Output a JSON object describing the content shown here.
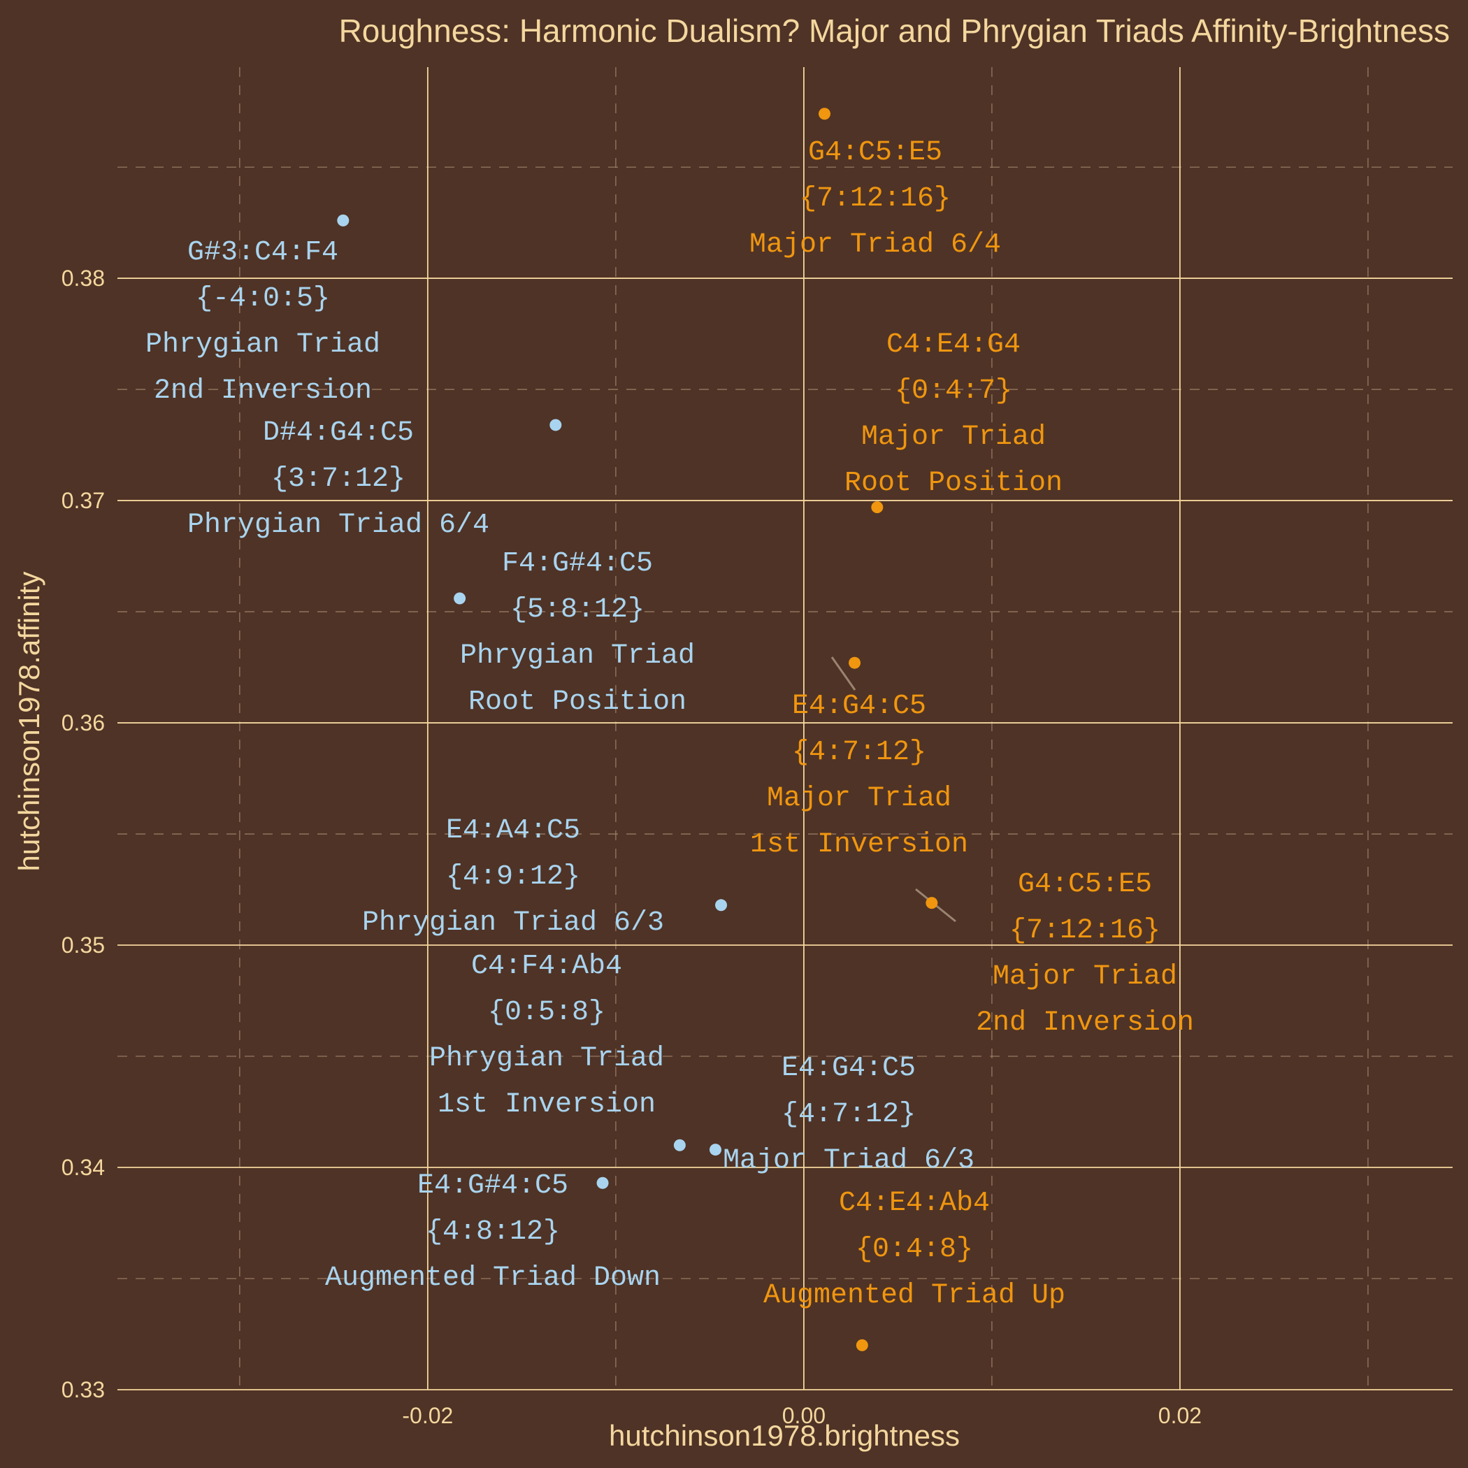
{
  "chart_data": {
    "type": "scatter",
    "title": "Roughness: Harmonic Dualism? Major and Phrygian Triads Affinity-Brightness",
    "xlabel": "hutchinson1978.brightness",
    "ylabel": "hutchinson1978.affinity",
    "xlim": [
      -0.0365,
      0.0345
    ],
    "ylim": [
      0.33,
      0.3895
    ],
    "x_ticks": [
      -0.02,
      0.0,
      0.02
    ],
    "x_tick_labels": [
      "-0.02",
      "0.00",
      "0.02"
    ],
    "y_ticks": [
      0.33,
      0.34,
      0.35,
      0.36,
      0.37,
      0.38
    ],
    "y_tick_labels": [
      "0.33",
      "0.34",
      "0.35",
      "0.36",
      "0.37",
      "0.38"
    ],
    "grid": true,
    "legend": "none",
    "colors": {
      "background": "#4f3326",
      "major": "#f0960f",
      "phrygian": "#a9d4ef",
      "text": "#f4d79e"
    },
    "points": [
      {
        "x": 0.0011,
        "y": 0.3874,
        "group": "major",
        "label_lines": [
          "G4:C5:E5",
          "{7:12:16}",
          "Major Triad 6/4"
        ]
      },
      {
        "x": 0.0039,
        "y": 0.3697,
        "group": "major",
        "label_lines": [
          "C4:E4:G4",
          "{0:4:7}",
          "Major Triad",
          "Root Position"
        ]
      },
      {
        "x": 0.0027,
        "y": 0.3627,
        "group": "major",
        "label_lines": [
          "E4:G4:C5",
          "{4:7:12}",
          "Major Triad",
          "1st Inversion"
        ]
      },
      {
        "x": 0.0068,
        "y": 0.3519,
        "group": "major",
        "label_lines": [
          "G4:C5:E5",
          "{7:12:16}",
          "Major Triad",
          "2nd Inversion"
        ]
      },
      {
        "x": 0.0031,
        "y": 0.332,
        "group": "major",
        "label_lines": [
          "C4:E4:Ab4",
          "{0:4:8}",
          "Augmented Triad Up"
        ]
      },
      {
        "x": -0.0245,
        "y": 0.3826,
        "group": "phrygian",
        "label_lines": [
          "G#3:C4:F4",
          "{-4:0:5}",
          "Phrygian Triad",
          "2nd Inversion"
        ]
      },
      {
        "x": -0.0132,
        "y": 0.3734,
        "group": "phrygian",
        "label_lines": [
          "D#4:G4:C5",
          "{3:7:12}",
          "Phrygian Triad 6/4"
        ]
      },
      {
        "x": -0.0183,
        "y": 0.3656,
        "group": "phrygian",
        "label_lines": [
          "F4:G#4:C5",
          "{5:8:12}",
          "Phrygian Triad",
          "Root Position"
        ]
      },
      {
        "x": -0.0044,
        "y": 0.3518,
        "group": "phrygian",
        "label_lines": [
          "E4:A4:C5",
          "{4:9:12}",
          "Phrygian Triad 6/3"
        ]
      },
      {
        "x": -0.0066,
        "y": 0.341,
        "group": "phrygian",
        "label_lines": [
          "C4:F4:Ab4",
          "{0:5:8}",
          "Phrygian Triad",
          "1st Inversion"
        ]
      },
      {
        "x": -0.0047,
        "y": 0.3408,
        "group": "phrygian",
        "label_lines": [
          "E4:G4:C5",
          "{4:7:12}",
          "Major Triad 6/3"
        ]
      },
      {
        "x": -0.0107,
        "y": 0.3393,
        "group": "phrygian",
        "label_lines": [
          "E4:G#4:C5",
          "{4:8:12}",
          "Augmented Triad Down"
        ]
      }
    ]
  }
}
